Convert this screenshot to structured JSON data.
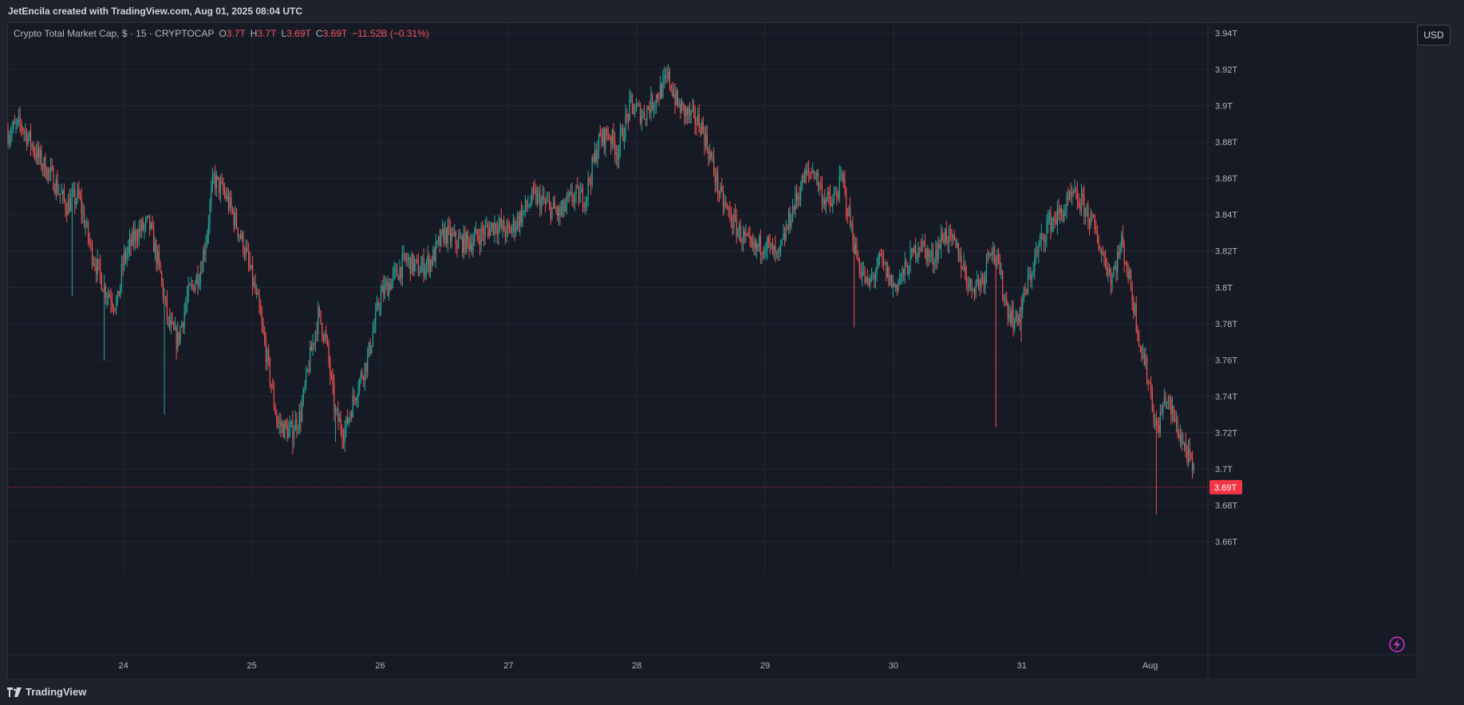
{
  "header": {
    "credit": "JetEncila created with TradingView.com, Aug 01, 2025 08:04 UTC"
  },
  "legend": {
    "symbol": "Crypto Total Market Cap, $ · 15 · CRYPTOCAP",
    "open_label": "O",
    "open": "3.7T",
    "high_label": "H",
    "high": "3.7T",
    "low_label": "L",
    "low": "3.69T",
    "close_label": "C",
    "close": "3.69T",
    "change": "−11.52B (−0.31%)"
  },
  "currency_button": "USD",
  "footer": {
    "brand": "TradingView",
    "logo_icon": "tradingview-logo-icon"
  },
  "colors": {
    "up": "#26a69a",
    "down": "#ef5350",
    "background": "#161a25",
    "grid": "#232733",
    "last_price": "#f23645"
  },
  "chart_data": {
    "type": "candlestick",
    "title": "Crypto Total Market Cap, $ · 15 · CRYPTOCAP",
    "interval": "15",
    "y_unit": "T",
    "ylim": [
      3.65,
      3.945
    ],
    "y_ticks": [
      3.66,
      3.68,
      3.7,
      3.72,
      3.74,
      3.76,
      3.78,
      3.8,
      3.82,
      3.84,
      3.86,
      3.88,
      3.9,
      3.92,
      3.94
    ],
    "y_tick_labels": [
      "3.66T",
      "3.68T",
      "3.7T",
      "3.72T",
      "3.74T",
      "3.76T",
      "3.78T",
      "3.8T",
      "3.82T",
      "3.84T",
      "3.86T",
      "3.88T",
      "3.9T",
      "3.92T",
      "3.94T"
    ],
    "x_ticks": [
      24,
      25,
      26,
      27,
      28,
      29,
      30,
      31,
      32
    ],
    "x_tick_labels": [
      "24",
      "25",
      "26",
      "27",
      "28",
      "29",
      "30",
      "31",
      "Aug"
    ],
    "xlim": [
      23.1,
      32.45
    ],
    "last_price": 3.69,
    "last_price_label": "3.69T",
    "grid": true,
    "price_path": [
      [
        23.1,
        3.885
      ],
      [
        23.2,
        3.89
      ],
      [
        23.35,
        3.87
      ],
      [
        23.45,
        3.86
      ],
      [
        23.55,
        3.845
      ],
      [
        23.65,
        3.85
      ],
      [
        23.75,
        3.82
      ],
      [
        23.85,
        3.8
      ],
      [
        23.95,
        3.79
      ],
      [
        24.0,
        3.815
      ],
      [
        24.1,
        3.83
      ],
      [
        24.2,
        3.835
      ],
      [
        24.28,
        3.81
      ],
      [
        24.35,
        3.78
      ],
      [
        24.42,
        3.77
      ],
      [
        24.5,
        3.795
      ],
      [
        24.6,
        3.81
      ],
      [
        24.65,
        3.83
      ],
      [
        24.7,
        3.86
      ],
      [
        24.8,
        3.85
      ],
      [
        24.88,
        3.835
      ],
      [
        24.95,
        3.82
      ],
      [
        25.05,
        3.79
      ],
      [
        25.12,
        3.76
      ],
      [
        25.2,
        3.725
      ],
      [
        25.3,
        3.72
      ],
      [
        25.38,
        3.73
      ],
      [
        25.45,
        3.76
      ],
      [
        25.52,
        3.785
      ],
      [
        25.58,
        3.77
      ],
      [
        25.65,
        3.73
      ],
      [
        25.72,
        3.72
      ],
      [
        25.82,
        3.745
      ],
      [
        25.9,
        3.76
      ],
      [
        26.0,
        3.795
      ],
      [
        26.1,
        3.805
      ],
      [
        26.2,
        3.815
      ],
      [
        26.3,
        3.81
      ],
      [
        26.4,
        3.815
      ],
      [
        26.5,
        3.83
      ],
      [
        26.6,
        3.825
      ],
      [
        26.7,
        3.825
      ],
      [
        26.8,
        3.83
      ],
      [
        26.9,
        3.835
      ],
      [
        27.0,
        3.83
      ],
      [
        27.1,
        3.84
      ],
      [
        27.2,
        3.85
      ],
      [
        27.3,
        3.845
      ],
      [
        27.4,
        3.84
      ],
      [
        27.5,
        3.85
      ],
      [
        27.6,
        3.85
      ],
      [
        27.7,
        3.88
      ],
      [
        27.78,
        3.885
      ],
      [
        27.85,
        3.875
      ],
      [
        27.95,
        3.9
      ],
      [
        28.05,
        3.895
      ],
      [
        28.15,
        3.905
      ],
      [
        28.25,
        3.915
      ],
      [
        28.32,
        3.9
      ],
      [
        28.4,
        3.895
      ],
      [
        28.5,
        3.89
      ],
      [
        28.58,
        3.87
      ],
      [
        28.65,
        3.85
      ],
      [
        28.72,
        3.84
      ],
      [
        28.8,
        3.83
      ],
      [
        28.9,
        3.82
      ],
      [
        29.0,
        3.825
      ],
      [
        29.1,
        3.815
      ],
      [
        29.2,
        3.84
      ],
      [
        29.3,
        3.86
      ],
      [
        29.38,
        3.865
      ],
      [
        29.45,
        3.85
      ],
      [
        29.52,
        3.845
      ],
      [
        29.6,
        3.86
      ],
      [
        29.65,
        3.84
      ],
      [
        29.72,
        3.815
      ],
      [
        29.8,
        3.8
      ],
      [
        29.9,
        3.815
      ],
      [
        30.0,
        3.8
      ],
      [
        30.1,
        3.81
      ],
      [
        30.2,
        3.825
      ],
      [
        30.3,
        3.815
      ],
      [
        30.4,
        3.83
      ],
      [
        30.5,
        3.82
      ],
      [
        30.6,
        3.8
      ],
      [
        30.7,
        3.805
      ],
      [
        30.75,
        3.825
      ],
      [
        30.82,
        3.81
      ],
      [
        30.88,
        3.79
      ],
      [
        30.95,
        3.78
      ],
      [
        31.02,
        3.795
      ],
      [
        31.1,
        3.815
      ],
      [
        31.2,
        3.835
      ],
      [
        31.3,
        3.84
      ],
      [
        31.4,
        3.85
      ],
      [
        31.48,
        3.845
      ],
      [
        31.55,
        3.835
      ],
      [
        31.62,
        3.82
      ],
      [
        31.7,
        3.805
      ],
      [
        31.78,
        3.825
      ],
      [
        31.85,
        3.8
      ],
      [
        31.92,
        3.77
      ],
      [
        32.0,
        3.745
      ],
      [
        32.05,
        3.72
      ],
      [
        32.12,
        3.74
      ],
      [
        32.2,
        3.725
      ],
      [
        32.28,
        3.71
      ],
      [
        32.35,
        3.695
      ]
    ],
    "wick_spikes": [
      [
        23.85,
        3.76
      ],
      [
        24.32,
        3.73
      ],
      [
        25.32,
        3.708
      ],
      [
        25.65,
        3.715
      ],
      [
        29.7,
        3.778
      ],
      [
        30.8,
        3.723
      ],
      [
        31.0,
        3.77
      ],
      [
        32.05,
        3.675
      ],
      [
        28.25,
        3.923
      ],
      [
        23.6,
        3.795
      ]
    ]
  }
}
